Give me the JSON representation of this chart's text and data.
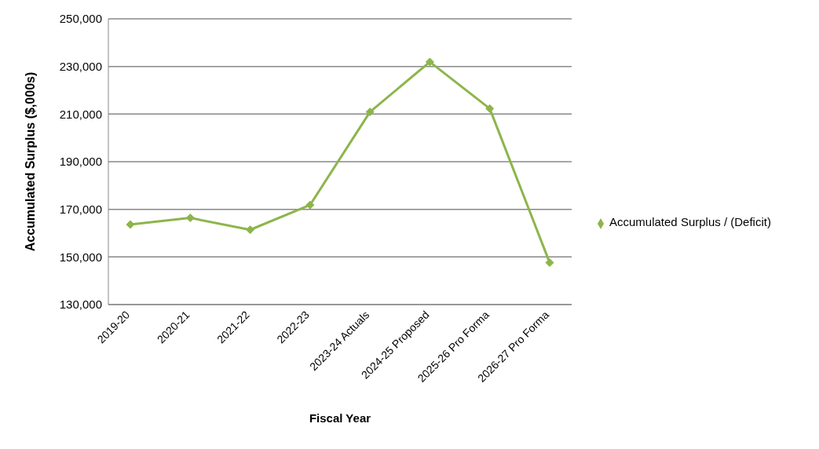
{
  "chart_data": {
    "type": "line",
    "xlabel": "Fiscal Year",
    "ylabel": "Accumulated Surplus ($,000s)",
    "categories": [
      "2019-20",
      "2020-21",
      "2021-22",
      "2022-23",
      "2023-24 Actuals",
      "2024-25 Proposed",
      "2025-26 Pro Forma",
      "2026-27 Pro Forma"
    ],
    "series": [
      {
        "name": "Accumulated Surplus / (Deficit)",
        "color": "#8db54b",
        "values": [
          163600,
          166400,
          161400,
          171800,
          210900,
          231900,
          212300,
          147600
        ]
      }
    ],
    "ylim": [
      130000,
      250000
    ],
    "yticks": [
      {
        "value": 130000,
        "label": "130,000"
      },
      {
        "value": 150000,
        "label": "150,000"
      },
      {
        "value": 170000,
        "label": "170,000"
      },
      {
        "value": 190000,
        "label": "190,000"
      },
      {
        "value": 210000,
        "label": "210,000"
      },
      {
        "value": 230000,
        "label": "230,000"
      },
      {
        "value": 250000,
        "label": "250,000"
      }
    ],
    "grid": "y",
    "legend": "right",
    "marker": "diamond",
    "line_style": "solid"
  }
}
